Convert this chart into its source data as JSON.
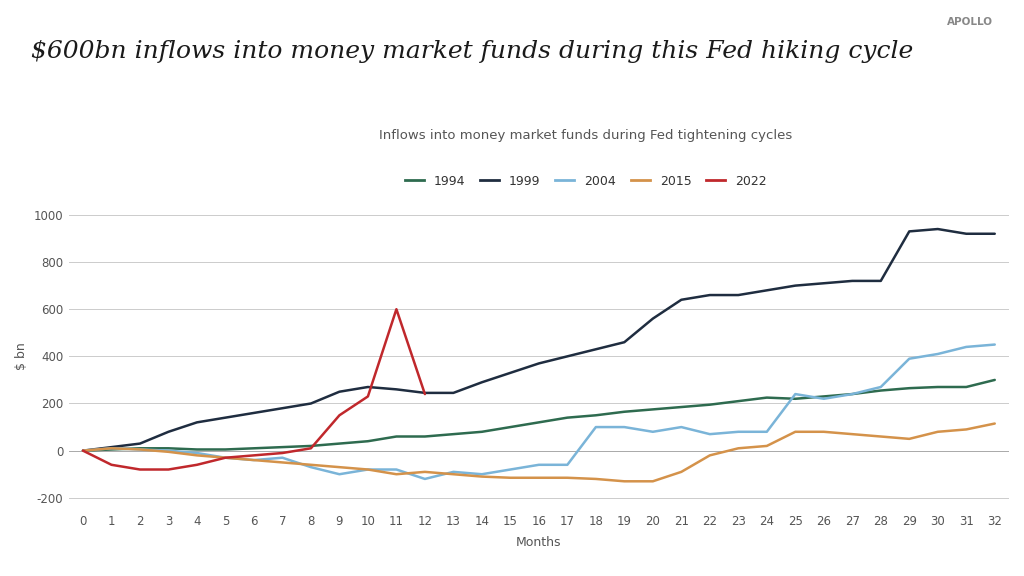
{
  "title": "$600bn inflows into money market funds during this Fed hiking cycle",
  "subtitle": "Inflows into money market funds during Fed tightening cycles",
  "ylabel": "$ bn",
  "xlabel": "Months",
  "watermark": "APOLLO",
  "series": {
    "1994": {
      "color": "#2e6b4f",
      "x": [
        0,
        1,
        2,
        3,
        4,
        5,
        6,
        7,
        8,
        9,
        10,
        11,
        12,
        13,
        14,
        15,
        16,
        17,
        18,
        19,
        20,
        21,
        22,
        23,
        24,
        25,
        26,
        27,
        28,
        29,
        30,
        31,
        32
      ],
      "y": [
        0,
        5,
        10,
        10,
        5,
        5,
        10,
        15,
        20,
        30,
        40,
        60,
        60,
        70,
        80,
        100,
        120,
        140,
        150,
        165,
        175,
        185,
        195,
        210,
        225,
        220,
        230,
        240,
        255,
        265,
        270,
        270,
        300
      ]
    },
    "1999": {
      "color": "#1f2d40",
      "x": [
        0,
        1,
        2,
        3,
        4,
        5,
        6,
        7,
        8,
        9,
        10,
        11,
        12,
        13,
        14,
        15,
        16,
        17,
        18,
        19,
        20,
        21,
        22,
        23,
        24,
        25,
        26,
        27,
        28,
        29,
        30,
        31,
        32
      ],
      "y": [
        0,
        15,
        30,
        80,
        120,
        140,
        160,
        180,
        200,
        250,
        270,
        260,
        245,
        245,
        290,
        330,
        370,
        400,
        430,
        460,
        560,
        640,
        660,
        660,
        680,
        700,
        710,
        720,
        720,
        930,
        940,
        920,
        920
      ]
    },
    "2004": {
      "color": "#7ab4d8",
      "x": [
        0,
        1,
        2,
        3,
        4,
        5,
        6,
        7,
        8,
        9,
        10,
        11,
        12,
        13,
        14,
        15,
        16,
        17,
        18,
        19,
        20,
        21,
        22,
        23,
        24,
        25,
        26,
        27,
        28,
        29,
        30,
        31,
        32
      ],
      "y": [
        0,
        10,
        5,
        0,
        -10,
        -30,
        -40,
        -30,
        -70,
        -100,
        -80,
        -80,
        -120,
        -90,
        -100,
        -80,
        -60,
        -60,
        100,
        100,
        80,
        100,
        70,
        80,
        80,
        240,
        220,
        240,
        270,
        390,
        410,
        440,
        450
      ]
    },
    "2015": {
      "color": "#d4924a",
      "x": [
        0,
        1,
        2,
        3,
        4,
        5,
        6,
        7,
        8,
        9,
        10,
        11,
        12,
        13,
        14,
        15,
        16,
        17,
        18,
        19,
        20,
        21,
        22,
        23,
        24,
        25,
        26,
        27,
        28,
        29,
        30,
        31,
        32
      ],
      "y": [
        0,
        10,
        5,
        -5,
        -20,
        -30,
        -40,
        -50,
        -60,
        -70,
        -80,
        -100,
        -90,
        -100,
        -110,
        -115,
        -115,
        -115,
        -120,
        -130,
        -130,
        -90,
        -20,
        10,
        20,
        80,
        80,
        70,
        60,
        50,
        80,
        90,
        115
      ]
    },
    "2022": {
      "color": "#c0282c",
      "x": [
        0,
        1,
        2,
        3,
        4,
        5,
        6,
        7,
        8,
        9,
        10,
        11,
        12
      ],
      "y": [
        0,
        -60,
        -80,
        -80,
        -60,
        -30,
        -20,
        -10,
        10,
        150,
        230,
        600,
        240
      ]
    }
  },
  "ylim": [
    -250,
    1050
  ],
  "xlim": [
    -0.5,
    32.5
  ],
  "yticks": [
    -200,
    0,
    200,
    400,
    600,
    800,
    1000
  ],
  "xticks": [
    0,
    1,
    2,
    3,
    4,
    5,
    6,
    7,
    8,
    9,
    10,
    11,
    12,
    13,
    14,
    15,
    16,
    17,
    18,
    19,
    20,
    21,
    22,
    23,
    24,
    25,
    26,
    27,
    28,
    29,
    30,
    31,
    32
  ],
  "bg_color": "#ffffff",
  "grid_color": "#cccccc"
}
